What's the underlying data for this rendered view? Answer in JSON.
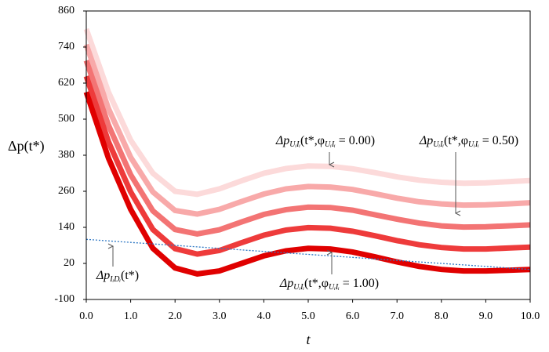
{
  "chart_data": {
    "type": "line",
    "x": [
      0,
      0.5,
      1,
      1.5,
      2,
      2.5,
      3,
      3.5,
      4,
      4.5,
      5,
      5.5,
      6,
      6.5,
      7,
      7.5,
      8,
      8.5,
      9,
      9.5,
      10
    ],
    "xlabel": "t",
    "ylabel": "Δp(t*)",
    "xlim": [
      0,
      10
    ],
    "xticks": [
      {
        "value": 0,
        "label": "0.0"
      },
      {
        "value": 1,
        "label": "1.0"
      },
      {
        "value": 2,
        "label": "2.0"
      },
      {
        "value": 3,
        "label": "3.0"
      },
      {
        "value": 4,
        "label": "4.0"
      },
      {
        "value": 5,
        "label": "5.0"
      },
      {
        "value": 6,
        "label": "6.0"
      },
      {
        "value": 7,
        "label": "7.0"
      },
      {
        "value": 8,
        "label": "8.0"
      },
      {
        "value": 9,
        "label": "9.0"
      },
      {
        "value": 10,
        "label": "10.0"
      }
    ],
    "ylim": [
      -100,
      860
    ],
    "yticks": [
      -100,
      20,
      140,
      260,
      380,
      500,
      620,
      740,
      860
    ],
    "series": [
      {
        "color": "#fcdada",
        "values": [
          800,
          590,
          430,
          320,
          260,
          250,
          268,
          295,
          320,
          336,
          344,
          343,
          335,
          322,
          308,
          297,
          290,
          287,
          288,
          292,
          296
        ]
      },
      {
        "color": "#f8a9a9",
        "values": [
          748,
          535,
          373,
          258,
          196,
          184,
          200,
          226,
          251,
          268,
          276,
          274,
          266,
          252,
          237,
          225,
          218,
          214,
          215,
          218,
          222
        ]
      },
      {
        "color": "#f37474",
        "values": [
          695,
          480,
          315,
          195,
          133,
          118,
          132,
          158,
          183,
          199,
          207,
          206,
          197,
          182,
          167,
          154,
          145,
          141,
          142,
          145,
          148
        ]
      },
      {
        "color": "#ee3b3b",
        "values": [
          643,
          425,
          258,
          133,
          69,
          51,
          63,
          89,
          114,
          131,
          139,
          137,
          127,
          112,
          96,
          82,
          73,
          68,
          68,
          71,
          74
        ]
      },
      {
        "color": "#e00000",
        "values": [
          590,
          370,
          200,
          70,
          5,
          -15,
          -5,
          20,
          45,
          62,
          70,
          68,
          58,
          42,
          25,
          10,
          0,
          -5,
          -5,
          -3,
          0
        ]
      },
      {
        "color": "#2f78c4",
        "dotted": true,
        "values": [
          100,
          95,
          90,
          85,
          80,
          75,
          70,
          65,
          60,
          55,
          50,
          45,
          40,
          35,
          30,
          25,
          20,
          15,
          10,
          5,
          0
        ]
      }
    ],
    "annotations": [
      {
        "parts": [
          "Δp",
          "UᵢIᵢ",
          "(t*,φ",
          "UᵢIᵢ",
          " = 0.00)"
        ]
      },
      {
        "parts": [
          "Δp",
          "UᵢIᵢ",
          "(t*,φ",
          "UᵢIᵢ",
          " = 0.50)"
        ]
      },
      {
        "parts": [
          "Δp",
          "UᵢIᵢ",
          "(t*,φ",
          "UᵢIᵢ",
          " = 1.00)"
        ]
      },
      {
        "parts": [
          "Δp",
          "IᵢDᵢ",
          "(t*)"
        ]
      }
    ]
  }
}
